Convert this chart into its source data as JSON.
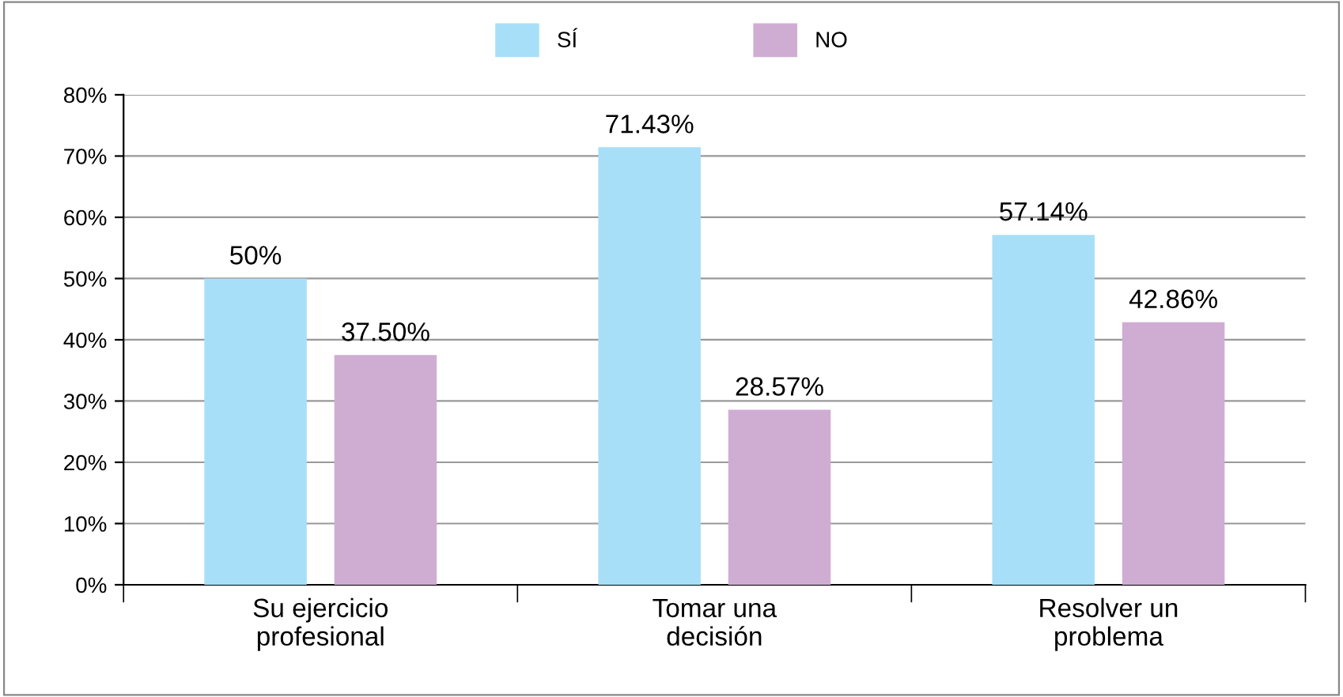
{
  "chart_data": {
    "type": "bar",
    "categories": [
      "Su ejercicio\nprofesional",
      "Tomar una\ndecisión",
      "Resolver un\nproblema"
    ],
    "series": [
      {
        "name": "SÍ",
        "color": "#a8dff8",
        "values": [
          50,
          71.43,
          57.14
        ],
        "value_labels": [
          "50%",
          "71.43%",
          "57.14%"
        ]
      },
      {
        "name": "NO",
        "color": "#cfadd3",
        "values": [
          37.5,
          28.57,
          42.86
        ],
        "value_labels": [
          "37.50%",
          "28.57%",
          "42.86%"
        ]
      }
    ],
    "ylim": [
      0,
      80
    ],
    "yticks": [
      {
        "value": 0,
        "label": "0%"
      },
      {
        "value": 10,
        "label": "10%"
      },
      {
        "value": 20,
        "label": "20%"
      },
      {
        "value": 30,
        "label": "30%"
      },
      {
        "value": 40,
        "label": "40%"
      },
      {
        "value": 50,
        "label": "50%"
      },
      {
        "value": 60,
        "label": "60%"
      },
      {
        "value": 70,
        "label": "70%"
      },
      {
        "value": 80,
        "label": "80%"
      }
    ],
    "grid": "y",
    "legend": "top"
  }
}
